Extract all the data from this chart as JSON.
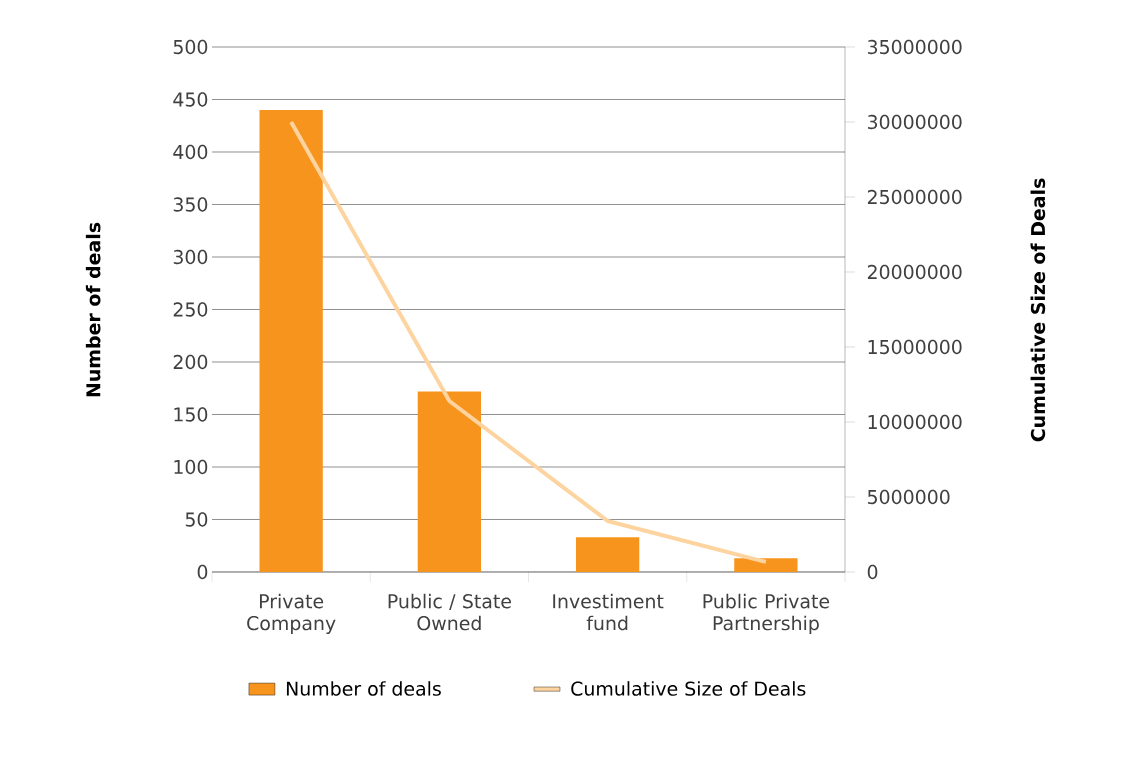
{
  "chart_data": {
    "type": "bar",
    "ylabel": "Number of deals",
    "y2label": "Cumulative Size of Deals",
    "categories": [
      "Private Company",
      "Public / State Owned",
      "Investiment fund",
      "Public Private Partnership"
    ],
    "series": [
      {
        "name": "Number of deals",
        "type": "bar",
        "color": "#f7941d",
        "values": [
          440,
          172,
          33,
          13
        ]
      },
      {
        "name": "Cumulative Size of Deals",
        "type": "line",
        "axis": "y2",
        "color": "#fdd4a0",
        "values": [
          30000000,
          11400000,
          3400000,
          670000
        ]
      }
    ],
    "ylim": [
      0,
      500
    ],
    "yticks": [
      0,
      50,
      100,
      150,
      200,
      250,
      300,
      350,
      400,
      450,
      500
    ],
    "y2lim": [
      0,
      35000000
    ],
    "y2ticks": [
      0,
      5000000,
      10000000,
      15000000,
      20000000,
      25000000,
      30000000,
      35000000
    ],
    "grid": "y",
    "legend": "bottom"
  }
}
